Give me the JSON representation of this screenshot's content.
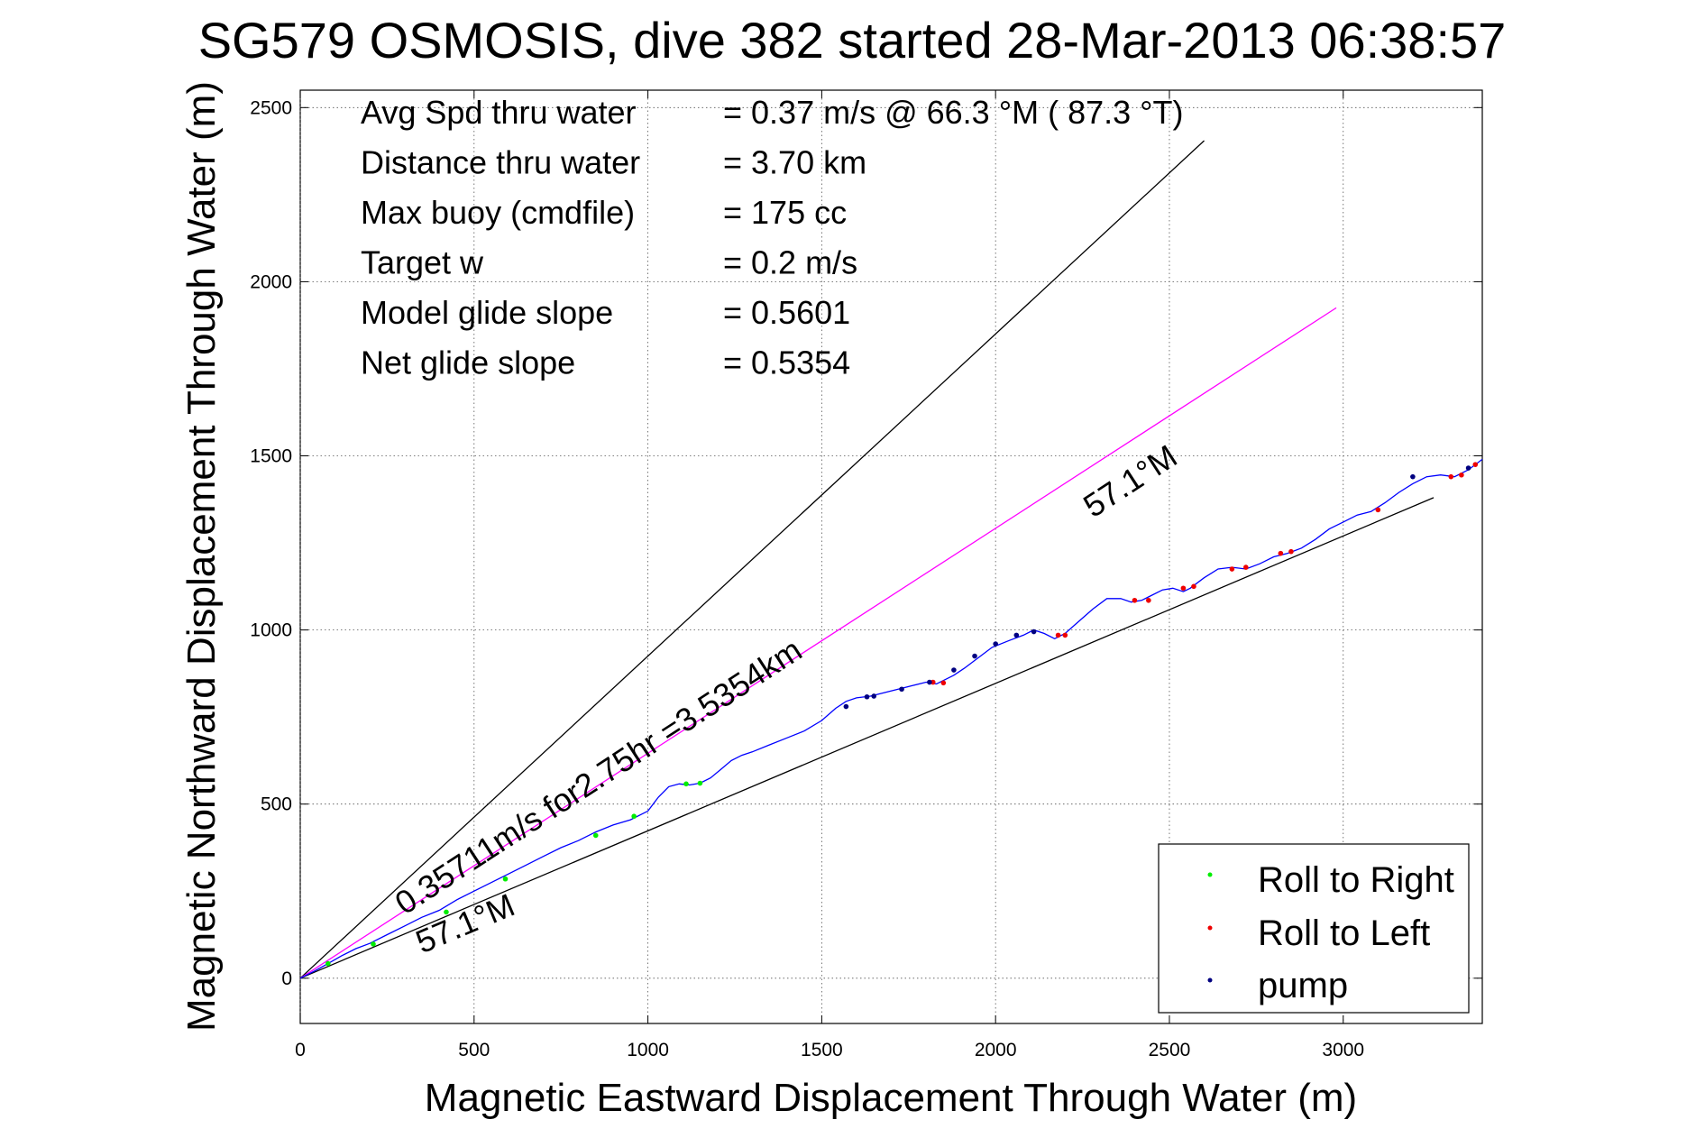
{
  "chart_data": {
    "type": "line",
    "title": "SG579 OSMOSIS, dive 382 started 28-Mar-2013 06:38:57",
    "xlabel": "Magnetic Eastward Displacement Through Water (m)",
    "ylabel": "Magnetic Northward Displacement Through Water (m)",
    "xlim": [
      0,
      3400
    ],
    "ylim": [
      -130,
      2550
    ],
    "xticks": [
      0,
      500,
      1000,
      1500,
      2000,
      2500,
      3000
    ],
    "yticks": [
      0,
      500,
      1000,
      1500,
      2000,
      2500
    ],
    "grid": true,
    "stats": [
      {
        "label": "Avg Spd thru water",
        "value": "=  0.37 m/s @  66.3 °M ( 87.3 °T)"
      },
      {
        "label": "Distance thru water",
        "value": "=  3.70 km"
      },
      {
        "label": "Max buoy (cmdfile)",
        "value": "= 175 cc"
      },
      {
        "label": "Target w",
        "value": "= 0.2 m/s"
      },
      {
        "label": "Model glide slope",
        "value": "= 0.5601"
      },
      {
        "label": "Net glide slope",
        "value": "= 0.5354"
      }
    ],
    "reference_lines": [
      {
        "x": [
          0,
          2600
        ],
        "y": [
          0,
          2405
        ],
        "color": "#000000"
      },
      {
        "x": [
          0,
          3260
        ],
        "y": [
          0,
          1380
        ],
        "color": "#000000"
      },
      {
        "x": [
          0,
          2980
        ],
        "y": [
          0,
          1925
        ],
        "color": "#ff00ff"
      }
    ],
    "annotations": [
      {
        "text": "57.1°M",
        "x": 2280,
        "y": 1320,
        "angle": -33
      },
      {
        "text": "0.35711m/s for2.75hr =3.5354km",
        "x": 300,
        "y": 180,
        "angle": -33
      },
      {
        "text": "57.1°M",
        "x": 350,
        "y": 70,
        "angle": -23
      }
    ],
    "series": [
      {
        "name": "track",
        "color": "#0000ff",
        "x": [
          0,
          40,
          80,
          120,
          160,
          200,
          250,
          300,
          350,
          400,
          450,
          500,
          550,
          600,
          650,
          700,
          750,
          800,
          850,
          900,
          950,
          1000,
          1030,
          1060,
          1090,
          1120,
          1150,
          1180,
          1210,
          1240,
          1270,
          1300,
          1350,
          1400,
          1450,
          1500,
          1540,
          1570,
          1600,
          1640,
          1680,
          1720,
          1760,
          1800,
          1830,
          1860,
          1880,
          1910,
          1950,
          1990,
          2040,
          2080,
          2110,
          2140,
          2170,
          2200,
          2240,
          2280,
          2320,
          2360,
          2390,
          2420,
          2450,
          2480,
          2510,
          2540,
          2560,
          2600,
          2640,
          2680,
          2720,
          2760,
          2800,
          2840,
          2880,
          2920,
          2960,
          3000,
          3040,
          3080,
          3120,
          3160,
          3200,
          3240,
          3280,
          3320,
          3360,
          3400
        ],
        "y": [
          0,
          20,
          42,
          65,
          85,
          100,
          125,
          150,
          175,
          195,
          225,
          250,
          275,
          300,
          325,
          350,
          375,
          395,
          420,
          440,
          455,
          480,
          520,
          550,
          558,
          555,
          560,
          575,
          600,
          625,
          640,
          650,
          670,
          690,
          710,
          740,
          775,
          795,
          805,
          810,
          820,
          830,
          840,
          850,
          845,
          860,
          870,
          890,
          920,
          950,
          970,
          985,
          1000,
          990,
          975,
          990,
          1025,
          1060,
          1090,
          1090,
          1080,
          1085,
          1100,
          1115,
          1120,
          1110,
          1120,
          1150,
          1175,
          1180,
          1175,
          1190,
          1210,
          1220,
          1235,
          1260,
          1290,
          1310,
          1330,
          1340,
          1365,
          1395,
          1420,
          1440,
          1445,
          1440,
          1460,
          1490
        ]
      }
    ],
    "markers": {
      "roll_right": {
        "name": "Roll to Right",
        "color": "#00ee00",
        "x": [
          80,
          210,
          420,
          590,
          850,
          960,
          1110,
          1150
        ],
        "y": [
          42,
          98,
          190,
          285,
          410,
          465,
          558,
          560
        ]
      },
      "roll_left": {
        "name": "Roll to Left",
        "color": "#ee0000",
        "x": [
          1820,
          1850,
          2180,
          2200,
          2400,
          2440,
          2540,
          2570,
          2680,
          2720,
          2820,
          2850,
          3100,
          3310,
          3340,
          3380
        ],
        "y": [
          850,
          848,
          985,
          985,
          1085,
          1085,
          1120,
          1125,
          1175,
          1180,
          1220,
          1225,
          1345,
          1440,
          1445,
          1475
        ]
      },
      "pump": {
        "name": "pump",
        "color": "#000080",
        "x": [
          1570,
          1630,
          1650,
          1730,
          1810,
          1880,
          1940,
          2000,
          2060,
          2110,
          3200,
          3360
        ],
        "y": [
          780,
          808,
          810,
          830,
          850,
          885,
          925,
          960,
          985,
          995,
          1440,
          1465
        ]
      }
    },
    "legend": {
      "position": "bottom-right",
      "entries": [
        "Roll to Right",
        "Roll to Left",
        "pump"
      ]
    }
  }
}
